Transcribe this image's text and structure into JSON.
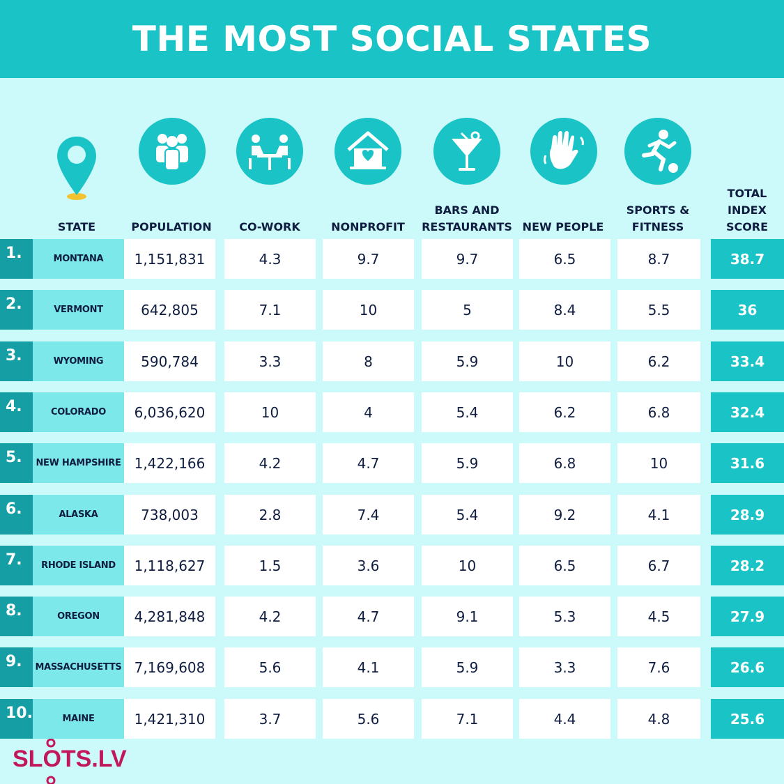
{
  "header": {
    "title": "THE MOST SOCIAL STATES"
  },
  "chart_data": {
    "type": "table",
    "title": "THE MOST SOCIAL STATES",
    "columns": [
      {
        "id": "state",
        "label_lines": [
          "STATE"
        ]
      },
      {
        "id": "population",
        "label_lines": [
          "POPULATION"
        ]
      },
      {
        "id": "cowork",
        "label_lines": [
          "CO-WORK"
        ]
      },
      {
        "id": "nonprofit",
        "label_lines": [
          "NONPROFIT"
        ]
      },
      {
        "id": "bars",
        "label_lines": [
          "BARS AND",
          "RESTAURANTS"
        ]
      },
      {
        "id": "newpeople",
        "label_lines": [
          "NEW PEOPLE"
        ]
      },
      {
        "id": "sports",
        "label_lines": [
          "SPORTS &",
          "FITNESS"
        ]
      },
      {
        "id": "total",
        "label_lines": [
          "TOTAL",
          "INDEX",
          "SCORE"
        ]
      }
    ],
    "rows": [
      {
        "rank": "1.",
        "state": "MONTANA",
        "population": "1,151,831",
        "cowork": "4.3",
        "nonprofit": "9.7",
        "bars": "9.7",
        "newpeople": "6.5",
        "sports": "8.7",
        "total": "38.7"
      },
      {
        "rank": "2.",
        "state": "VERMONT",
        "population": "642,805",
        "cowork": "7.1",
        "nonprofit": "10",
        "bars": "5",
        "newpeople": "8.4",
        "sports": "5.5",
        "total": "36"
      },
      {
        "rank": "3.",
        "state": "WYOMING",
        "population": "590,784",
        "cowork": "3.3",
        "nonprofit": "8",
        "bars": "5.9",
        "newpeople": "10",
        "sports": "6.2",
        "total": "33.4"
      },
      {
        "rank": "4.",
        "state": "COLORADO",
        "population": "6,036,620",
        "cowork": "10",
        "nonprofit": "4",
        "bars": "5.4",
        "newpeople": "6.2",
        "sports": "6.8",
        "total": "32.4"
      },
      {
        "rank": "5.",
        "state": "NEW HAMPSHIRE",
        "population": "1,422,166",
        "cowork": "4.2",
        "nonprofit": "4.7",
        "bars": "5.9",
        "newpeople": "6.8",
        "sports": "10",
        "total": "31.6"
      },
      {
        "rank": "6.",
        "state": "ALASKA",
        "population": "738,003",
        "cowork": "2.8",
        "nonprofit": "7.4",
        "bars": "5.4",
        "newpeople": "9.2",
        "sports": "4.1",
        "total": "28.9"
      },
      {
        "rank": "7.",
        "state": "RHODE ISLAND",
        "population": "1,118,627",
        "cowork": "1.5",
        "nonprofit": "3.6",
        "bars": "10",
        "newpeople": "6.5",
        "sports": "6.7",
        "total": "28.2"
      },
      {
        "rank": "8.",
        "state": "OREGON",
        "population": "4,281,848",
        "cowork": "4.2",
        "nonprofit": "4.7",
        "bars": "9.1",
        "newpeople": "5.3",
        "sports": "4.5",
        "total": "27.9"
      },
      {
        "rank": "9.",
        "state": "MASSACHUSETTS",
        "population": "7,169,608",
        "cowork": "5.6",
        "nonprofit": "4.1",
        "bars": "5.9",
        "newpeople": "3.3",
        "sports": "7.6",
        "total": "26.6"
      },
      {
        "rank": "10.",
        "state": "MAINE",
        "population": "1,421,310",
        "cowork": "3.7",
        "nonprofit": "5.6",
        "bars": "7.1",
        "newpeople": "4.4",
        "sports": "4.8",
        "total": "25.6"
      }
    ]
  },
  "icons": [
    "location-pin-icon",
    "people-group-icon",
    "coworking-table-icon",
    "heart-house-icon",
    "cocktail-glass-icon",
    "waving-hand-icon",
    "soccer-player-icon"
  ],
  "colors": {
    "header": "#19c3c6",
    "background": "#ccfafa",
    "rank_cell": "#159ea4",
    "state_cell": "#7de8ea",
    "total_cell": "#19c3c6",
    "text": "#0f1d40",
    "logo": "#c2185b"
  },
  "logo": {
    "text": "SLOTS.LV"
  }
}
